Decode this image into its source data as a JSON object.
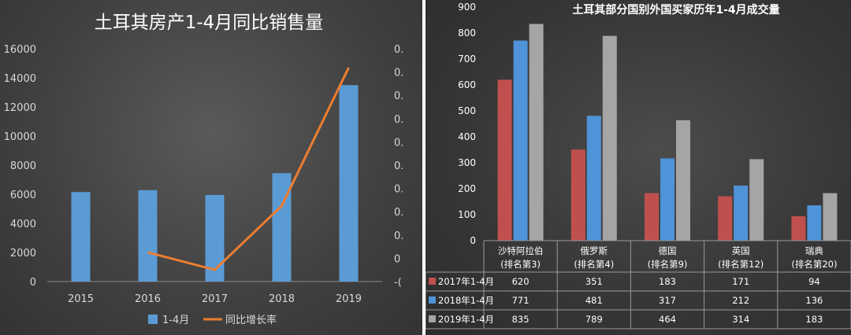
{
  "chart_data": [
    {
      "type": "bar+line",
      "title": "土耳其房产1-4月同比销售量",
      "categories": [
        "2015",
        "2016",
        "2017",
        "2018",
        "2019"
      ],
      "ylim": [
        0,
        16000
      ],
      "yticks": [
        "16000",
        "14000",
        "12000",
        "10000",
        "8000",
        "6000",
        "4000",
        "2000",
        "0"
      ],
      "y2_tick_labels": [
        "0.",
        "0.",
        "0.",
        "0.",
        "0.",
        "0.",
        "0.",
        "0.",
        "0.",
        "0",
        "-("
      ],
      "series": [
        {
          "name": "1-4月",
          "kind": "bar",
          "color": "#5b9bd5",
          "values": [
            6150,
            6280,
            5950,
            7450,
            13500
          ]
        },
        {
          "name": "同比增长率",
          "kind": "line",
          "color": "#ed7d31",
          "y2_position": [
            null,
            0.028,
            -0.055,
            0.25,
            0.91
          ]
        }
      ],
      "legend": "bottom",
      "grid": false
    },
    {
      "type": "bar",
      "title": "土耳其部分国别外国买家历年1-4月成交量",
      "categories": [
        {
          "name": "沙特阿拉伯",
          "rank": "(排名第3)"
        },
        {
          "name": "俄罗斯",
          "rank": "(排名第4)"
        },
        {
          "name": "德国",
          "rank": "(排名第9)"
        },
        {
          "name": "英国",
          "rank": "(排名第12)"
        },
        {
          "name": "瑞典",
          "rank": "(排名第20)"
        }
      ],
      "ylim": [
        0,
        900
      ],
      "yticks": [
        "900",
        "800",
        "700",
        "600",
        "500",
        "400",
        "300",
        "200",
        "100",
        "0"
      ],
      "series": [
        {
          "name": "2017年1-4月",
          "color": "#c0504d",
          "values": [
            620,
            351,
            183,
            171,
            94
          ]
        },
        {
          "name": "2018年1-4月",
          "color": "#4f93d8",
          "values": [
            771,
            481,
            317,
            212,
            136
          ]
        },
        {
          "name": "2019年1-4月",
          "color": "#a5a5a5",
          "values": [
            835,
            789,
            464,
            314,
            183
          ]
        }
      ],
      "legend": "data-table",
      "grid": false
    }
  ]
}
